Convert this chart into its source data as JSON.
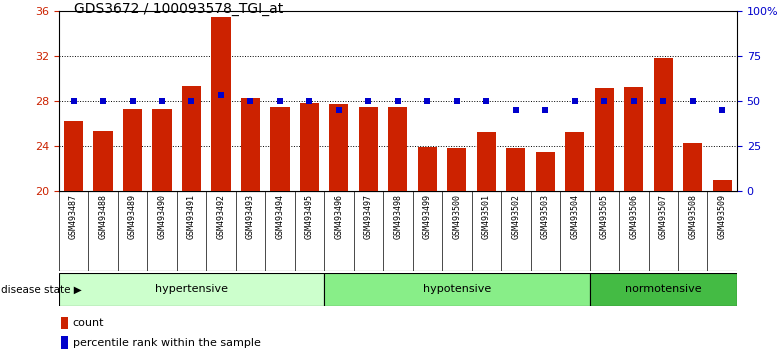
{
  "title": "GDS3672 / 100093578_TGI_at",
  "samples": [
    "GSM493487",
    "GSM493488",
    "GSM493489",
    "GSM493490",
    "GSM493491",
    "GSM493492",
    "GSM493493",
    "GSM493494",
    "GSM493495",
    "GSM493496",
    "GSM493497",
    "GSM493498",
    "GSM493499",
    "GSM493500",
    "GSM493501",
    "GSM493502",
    "GSM493503",
    "GSM493504",
    "GSM493505",
    "GSM493506",
    "GSM493507",
    "GSM493508",
    "GSM493509"
  ],
  "counts": [
    26.2,
    25.3,
    27.3,
    27.3,
    29.3,
    35.4,
    28.3,
    27.5,
    27.8,
    27.7,
    27.5,
    27.5,
    23.9,
    23.8,
    25.2,
    23.8,
    23.5,
    25.2,
    29.1,
    29.2,
    31.8,
    24.3,
    21.0
  ],
  "percentiles": [
    50,
    50,
    50,
    50,
    50,
    53,
    50,
    50,
    50,
    45,
    50,
    50,
    50,
    50,
    50,
    45,
    45,
    50,
    50,
    50,
    50,
    50,
    45
  ],
  "groups": [
    {
      "label": "hypertensive",
      "start": 0,
      "end": 9,
      "color": "#ccffcc"
    },
    {
      "label": "hypotensive",
      "start": 9,
      "end": 18,
      "color": "#88ee88"
    },
    {
      "label": "normotensive",
      "start": 18,
      "end": 23,
      "color": "#44bb44"
    }
  ],
  "bar_color": "#cc2200",
  "dot_color": "#0000cc",
  "ylim_left": [
    20,
    36
  ],
  "ylim_right": [
    0,
    100
  ],
  "yticks_left": [
    20,
    24,
    28,
    32,
    36
  ],
  "yticks_right": [
    0,
    25,
    50,
    75,
    100
  ],
  "ytick_labels_right": [
    "0",
    "25",
    "50",
    "75",
    "100%"
  ],
  "grid_vals": [
    24,
    28,
    32
  ],
  "label_count": "count",
  "label_percentile": "percentile rank within the sample",
  "disease_state_label": "disease state"
}
